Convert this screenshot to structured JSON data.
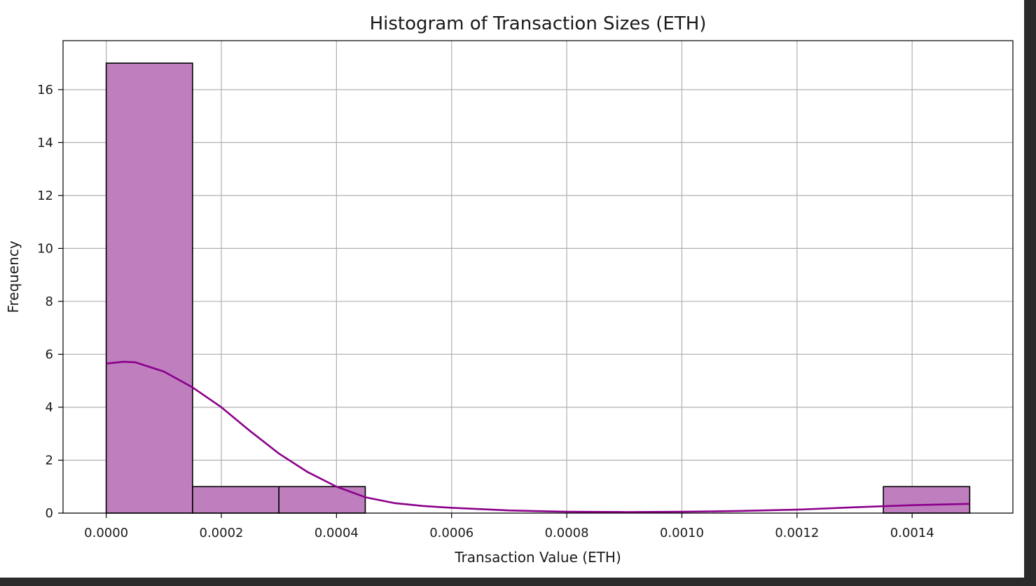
{
  "chart_data": {
    "type": "bar",
    "title": "Histogram of Transaction Sizes (ETH)",
    "xlabel": "Transaction Value (ETH)",
    "ylabel": "Frequency",
    "xlim": [
      -7.5e-05,
      0.001575
    ],
    "ylim": [
      0,
      17.85
    ],
    "x_ticks": [
      0.0,
      0.0002,
      0.0004,
      0.0006,
      0.0008,
      0.001,
      0.0012,
      0.0014
    ],
    "x_tick_labels": [
      "0.0000",
      "0.0002",
      "0.0004",
      "0.0006",
      "0.0008",
      "0.0010",
      "0.0012",
      "0.0014"
    ],
    "y_ticks": [
      0,
      2,
      4,
      6,
      8,
      10,
      12,
      14,
      16
    ],
    "y_tick_labels": [
      "0",
      "2",
      "4",
      "6",
      "8",
      "10",
      "12",
      "14",
      "16"
    ],
    "bins": [
      {
        "x0": 0.0,
        "x1": 0.00015,
        "count": 17
      },
      {
        "x0": 0.00015,
        "x1": 0.0003,
        "count": 1
      },
      {
        "x0": 0.0003,
        "x1": 0.00045,
        "count": 1
      },
      {
        "x0": 0.00045,
        "x1": 0.0006,
        "count": 0
      },
      {
        "x0": 0.0006,
        "x1": 0.00075,
        "count": 0
      },
      {
        "x0": 0.00075,
        "x1": 0.0009,
        "count": 0
      },
      {
        "x0": 0.0009,
        "x1": 0.00105,
        "count": 0
      },
      {
        "x0": 0.00105,
        "x1": 0.0012,
        "count": 0
      },
      {
        "x0": 0.0012,
        "x1": 0.00135,
        "count": 0
      },
      {
        "x0": 0.00135,
        "x1": 0.0015,
        "count": 1
      }
    ],
    "kde": {
      "x": [
        0.0,
        3e-05,
        5e-05,
        0.0001,
        0.00015,
        0.0002,
        0.00025,
        0.0003,
        0.00035,
        0.0004,
        0.00045,
        0.0005,
        0.00055,
        0.0006,
        0.0007,
        0.0008,
        0.0009,
        0.001,
        0.0011,
        0.0012,
        0.0013,
        0.0014,
        0.0015
      ],
      "y": [
        5.65,
        5.72,
        5.7,
        5.35,
        4.75,
        4.0,
        3.1,
        2.25,
        1.55,
        1.0,
        0.6,
        0.38,
        0.27,
        0.2,
        0.1,
        0.05,
        0.04,
        0.05,
        0.08,
        0.13,
        0.22,
        0.3,
        0.35
      ]
    },
    "grid": true,
    "bar_color": "#bf7fbf",
    "bar_edge_color": "#000000",
    "kde_color": "#8b008b",
    "grid_color": "#b0b0b0"
  }
}
